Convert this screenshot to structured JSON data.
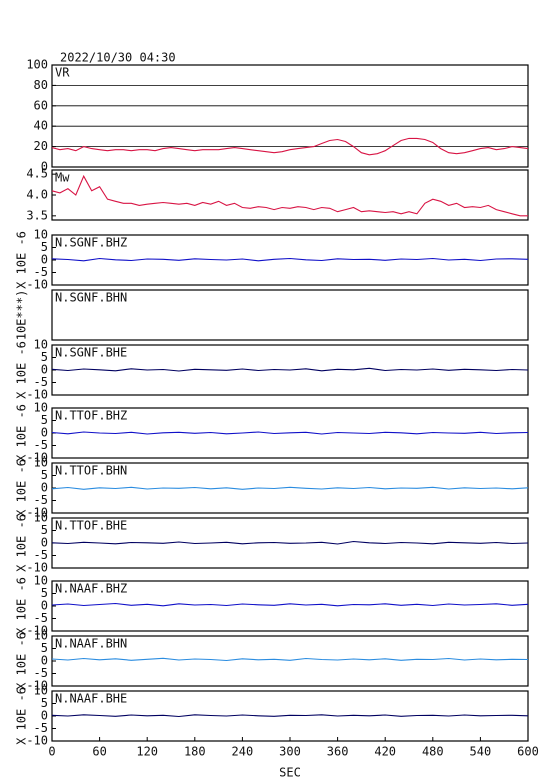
{
  "chart_data": [
    {
      "type": "line",
      "title": "2022/10/30 04:30",
      "x": [
        0,
        10,
        20,
        30,
        40,
        50,
        60,
        70,
        80,
        90,
        100,
        110,
        120,
        130,
        140,
        150,
        160,
        170,
        180,
        190,
        200,
        210,
        220,
        230,
        240,
        250,
        260,
        270,
        280,
        290,
        300,
        310,
        320,
        330,
        340,
        350,
        360,
        370,
        380,
        390,
        400,
        410,
        420,
        430,
        440,
        450,
        460,
        470,
        480,
        490,
        500,
        510,
        520,
        530,
        540,
        550,
        560,
        570,
        580,
        590,
        600
      ],
      "xlim": [
        0,
        600
      ],
      "series": [
        {
          "name": "VR",
          "color": "#d81444",
          "values": [
            19,
            17,
            18,
            16,
            20,
            18,
            17,
            16,
            17,
            17,
            16,
            17,
            17,
            16,
            18,
            19,
            18,
            17,
            16,
            17,
            17,
            17,
            18,
            19,
            18,
            17,
            16,
            15,
            14,
            15,
            17,
            18,
            19,
            20,
            23,
            26,
            27,
            25,
            20,
            14,
            12,
            13,
            16,
            21,
            26,
            28,
            28,
            27,
            24,
            18,
            14,
            13,
            14,
            16,
            18,
            19,
            17,
            18,
            20,
            19,
            18
          ]
        }
      ],
      "ylim": [
        0,
        100
      ],
      "yticks": [
        0,
        20,
        40,
        60,
        80,
        100
      ],
      "grid": true
    },
    {
      "type": "line",
      "x": [
        0,
        10,
        20,
        30,
        40,
        50,
        60,
        70,
        80,
        90,
        100,
        110,
        120,
        130,
        140,
        150,
        160,
        170,
        180,
        190,
        200,
        210,
        220,
        230,
        240,
        250,
        260,
        270,
        280,
        290,
        300,
        310,
        320,
        330,
        340,
        350,
        360,
        370,
        380,
        390,
        400,
        410,
        420,
        430,
        440,
        450,
        460,
        470,
        480,
        490,
        500,
        510,
        520,
        530,
        540,
        550,
        560,
        570,
        580,
        590,
        600
      ],
      "xlim": [
        0,
        600
      ],
      "series": [
        {
          "name": "Mw",
          "color": "#d81444",
          "values": [
            4.1,
            4.05,
            4.15,
            4.0,
            4.45,
            4.1,
            4.2,
            3.9,
            3.85,
            3.8,
            3.8,
            3.75,
            3.78,
            3.8,
            3.82,
            3.8,
            3.78,
            3.8,
            3.75,
            3.82,
            3.78,
            3.85,
            3.75,
            3.8,
            3.7,
            3.68,
            3.72,
            3.7,
            3.65,
            3.7,
            3.68,
            3.72,
            3.7,
            3.65,
            3.7,
            3.68,
            3.6,
            3.65,
            3.7,
            3.6,
            3.62,
            3.6,
            3.58,
            3.6,
            3.55,
            3.6,
            3.55,
            3.8,
            3.9,
            3.85,
            3.75,
            3.8,
            3.7,
            3.72,
            3.7,
            3.75,
            3.65,
            3.6,
            3.55,
            3.5,
            3.5
          ]
        }
      ],
      "ylim": [
        3.4,
        4.6
      ],
      "yticks": [
        3.5,
        {
          "value": 4,
          "label": "4.0"
        },
        4.5
      ]
    },
    {
      "type": "line",
      "ylabel": "X 10E -6",
      "x": [
        0,
        20,
        40,
        60,
        80,
        100,
        120,
        140,
        160,
        180,
        200,
        220,
        240,
        260,
        280,
        300,
        320,
        340,
        360,
        380,
        400,
        420,
        440,
        460,
        480,
        500,
        520,
        540,
        560,
        580,
        600
      ],
      "xlim": [
        0,
        600
      ],
      "series": [
        {
          "name": "N.SGNF.BHZ",
          "color": "#1010c8",
          "values": [
            0.5,
            0.2,
            -0.3,
            0.6,
            0.1,
            -0.2,
            0.4,
            0.3,
            -0.1,
            0.5,
            0.2,
            0.0,
            0.4,
            -0.3,
            0.3,
            0.6,
            0.1,
            -0.2,
            0.5,
            0.2,
            0.3,
            -0.1,
            0.4,
            0.2,
            0.6,
            0.0,
            0.3,
            -0.2,
            0.4,
            0.5,
            0.3
          ]
        }
      ],
      "ylim": [
        -10,
        10
      ],
      "yticks": [
        -10,
        -5,
        0,
        5,
        10
      ]
    },
    {
      "type": "empty",
      "ylabel": "10E***)",
      "series": [
        {
          "name": "N.SGNF.BHN"
        }
      ]
    },
    {
      "type": "line",
      "ylabel": "X 10E -6",
      "x": [
        0,
        20,
        40,
        60,
        80,
        100,
        120,
        140,
        160,
        180,
        200,
        220,
        240,
        260,
        280,
        300,
        320,
        340,
        360,
        380,
        400,
        420,
        440,
        460,
        480,
        500,
        520,
        540,
        560,
        580,
        600
      ],
      "xlim": [
        0,
        600
      ],
      "series": [
        {
          "name": "N.SGNF.BHE",
          "color": "#000060",
          "values": [
            0.3,
            -0.2,
            0.4,
            0.1,
            -0.3,
            0.5,
            0.0,
            0.2,
            -0.4,
            0.3,
            0.1,
            -0.1,
            0.4,
            -0.2,
            0.2,
            0.0,
            0.5,
            -0.3,
            0.3,
            0.1,
            0.7,
            -0.2,
            0.2,
            0.0,
            0.4,
            -0.1,
            0.3,
            0.1,
            -0.2,
            0.2,
            0.0
          ]
        }
      ],
      "ylim": [
        -10,
        10
      ],
      "yticks": [
        -10,
        -5,
        0,
        5,
        10
      ]
    },
    {
      "type": "line",
      "ylabel": "X 10E -6",
      "x": [
        0,
        20,
        40,
        60,
        80,
        100,
        120,
        140,
        160,
        180,
        200,
        220,
        240,
        260,
        280,
        300,
        320,
        340,
        360,
        380,
        400,
        420,
        440,
        460,
        480,
        500,
        520,
        540,
        560,
        580,
        600
      ],
      "xlim": [
        0,
        600
      ],
      "series": [
        {
          "name": "N.TTOF.BHZ",
          "color": "#1010c8",
          "values": [
            0.2,
            -0.3,
            0.4,
            0.0,
            -0.2,
            0.3,
            -0.4,
            0.1,
            0.3,
            -0.1,
            0.2,
            -0.3,
            0.0,
            0.4,
            -0.2,
            0.1,
            0.3,
            -0.4,
            0.2,
            0.0,
            -0.2,
            0.3,
            0.1,
            -0.3,
            0.2,
            0.0,
            -0.1,
            0.3,
            -0.2,
            0.1,
            0.2
          ]
        }
      ],
      "ylim": [
        -10,
        10
      ],
      "yticks": [
        -10,
        -5,
        0,
        5,
        10
      ]
    },
    {
      "type": "line",
      "ylabel": "X 10E -6",
      "x": [
        0,
        20,
        40,
        60,
        80,
        100,
        120,
        140,
        160,
        180,
        200,
        220,
        240,
        260,
        280,
        300,
        320,
        340,
        360,
        380,
        400,
        420,
        440,
        460,
        480,
        500,
        520,
        540,
        560,
        580,
        600
      ],
      "xlim": [
        0,
        600
      ],
      "series": [
        {
          "name": "N.TTOF.BHN",
          "color": "#2a8ce0",
          "values": [
            -0.3,
            0.2,
            -0.5,
            0.1,
            -0.2,
            0.3,
            -0.4,
            0.0,
            -0.1,
            0.2,
            -0.3,
            0.1,
            -0.5,
            0.0,
            -0.2,
            0.3,
            -0.1,
            -0.4,
            0.1,
            -0.2,
            0.2,
            -0.3,
            0.0,
            -0.1,
            0.3,
            -0.4,
            0.1,
            -0.2,
            0.0,
            -0.3,
            0.1
          ]
        }
      ],
      "ylim": [
        -10,
        10
      ],
      "yticks": [
        -10,
        -5,
        0,
        5,
        10
      ]
    },
    {
      "type": "line",
      "ylabel": "X 10E -6",
      "x": [
        0,
        20,
        40,
        60,
        80,
        100,
        120,
        140,
        160,
        180,
        200,
        220,
        240,
        260,
        280,
        300,
        320,
        340,
        360,
        380,
        400,
        420,
        440,
        460,
        480,
        500,
        520,
        540,
        560,
        580,
        600
      ],
      "xlim": [
        0,
        600
      ],
      "series": [
        {
          "name": "N.TTOF.BHE",
          "color": "#000060",
          "values": [
            0.1,
            -0.2,
            0.3,
            0.0,
            -0.3,
            0.2,
            0.1,
            -0.1,
            0.4,
            -0.2,
            0.0,
            0.3,
            -0.3,
            0.1,
            0.2,
            -0.1,
            0.0,
            0.3,
            -0.4,
            0.6,
            0.1,
            -0.2,
            0.2,
            0.0,
            -0.3,
            0.3,
            0.1,
            -0.1,
            0.2,
            -0.2,
            0.0
          ]
        }
      ],
      "ylim": [
        -10,
        10
      ],
      "yticks": [
        -10,
        -5,
        0,
        5,
        10
      ]
    },
    {
      "type": "line",
      "ylabel": "X 10E -6",
      "x": [
        0,
        20,
        40,
        60,
        80,
        100,
        120,
        140,
        160,
        180,
        200,
        220,
        240,
        260,
        280,
        300,
        320,
        340,
        360,
        380,
        400,
        420,
        440,
        460,
        480,
        500,
        520,
        540,
        560,
        580,
        600
      ],
      "xlim": [
        0,
        600
      ],
      "series": [
        {
          "name": "N.NAAF.BHZ",
          "color": "#1010c8",
          "values": [
            0.4,
            0.8,
            0.2,
            0.6,
            1.0,
            0.3,
            0.7,
            0.1,
            0.9,
            0.4,
            0.6,
            0.2,
            0.8,
            0.5,
            0.3,
            0.9,
            0.4,
            0.7,
            0.1,
            0.6,
            0.5,
            0.9,
            0.3,
            0.7,
            0.2,
            0.8,
            0.4,
            0.6,
            0.9,
            0.3,
            0.7
          ]
        }
      ],
      "ylim": [
        -10,
        10
      ],
      "yticks": [
        -10,
        -5,
        0,
        5,
        10
      ]
    },
    {
      "type": "line",
      "ylabel": "X 10E -6",
      "x": [
        0,
        20,
        40,
        60,
        80,
        100,
        120,
        140,
        160,
        180,
        200,
        220,
        240,
        260,
        280,
        300,
        320,
        340,
        360,
        380,
        400,
        420,
        440,
        460,
        480,
        500,
        520,
        540,
        560,
        580,
        600
      ],
      "xlim": [
        0,
        600
      ],
      "series": [
        {
          "name": "N.NAAF.BHN",
          "color": "#2a8ce0",
          "values": [
            0.8,
            0.4,
            1.0,
            0.5,
            0.9,
            0.3,
            0.7,
            1.1,
            0.4,
            0.8,
            0.6,
            0.2,
            0.9,
            0.5,
            0.7,
            0.3,
            1.0,
            0.6,
            0.4,
            0.8,
            0.5,
            0.9,
            0.3,
            0.7,
            0.6,
            1.0,
            0.4,
            0.8,
            0.5,
            0.7,
            0.6
          ]
        }
      ],
      "ylim": [
        -10,
        10
      ],
      "yticks": [
        -10,
        -5,
        0,
        5,
        10
      ]
    },
    {
      "type": "line",
      "ylabel": "X 10E -6",
      "xlabel": "SEC",
      "x": [
        0,
        20,
        40,
        60,
        80,
        100,
        120,
        140,
        160,
        180,
        200,
        220,
        240,
        260,
        280,
        300,
        320,
        340,
        360,
        380,
        400,
        420,
        440,
        460,
        480,
        500,
        520,
        540,
        560,
        580,
        600
      ],
      "xlim": [
        0,
        600
      ],
      "xticks": [
        0,
        60,
        120,
        180,
        240,
        300,
        360,
        420,
        480,
        540,
        600
      ],
      "series": [
        {
          "name": "N.NAAF.BHE",
          "color": "#000060",
          "values": [
            0.3,
            0.0,
            0.5,
            0.2,
            -0.1,
            0.4,
            0.1,
            0.3,
            -0.2,
            0.5,
            0.2,
            0.0,
            0.4,
            0.1,
            -0.1,
            0.3,
            0.2,
            0.5,
            0.0,
            0.3,
            0.1,
            0.4,
            -0.1,
            0.2,
            0.3,
            0.0,
            0.4,
            0.1,
            0.2,
            0.3,
            0.1
          ]
        }
      ],
      "ylim": [
        -10,
        10
      ],
      "yticks": [
        -10,
        -5,
        0,
        5,
        10
      ]
    }
  ]
}
